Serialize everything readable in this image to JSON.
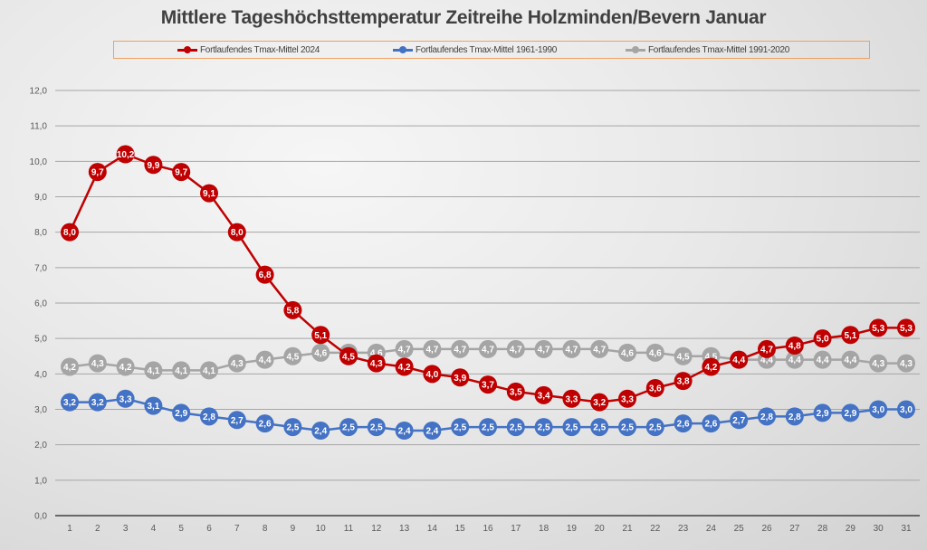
{
  "chart_data": {
    "type": "line",
    "title": "Mittlere Tageshöchsttemperatur Zeitreihe Holzminden/Bevern Januar",
    "xlabel": "",
    "ylabel": "",
    "x": [
      1,
      2,
      3,
      4,
      5,
      6,
      7,
      8,
      9,
      10,
      11,
      12,
      13,
      14,
      15,
      16,
      17,
      18,
      19,
      20,
      21,
      22,
      23,
      24,
      25,
      26,
      27,
      28,
      29,
      30,
      31
    ],
    "ylim": [
      0,
      12
    ],
    "y_ticks": [
      "0,0",
      "1,0",
      "2,0",
      "3,0",
      "4,0",
      "5,0",
      "6,0",
      "7,0",
      "8,0",
      "9,0",
      "10,0",
      "11,0",
      "12,0"
    ],
    "grid": true,
    "legend_position": "top",
    "series": [
      {
        "name": "Fortlaufendes Tmax-Mittel 1961-1990",
        "color": "#4472c4",
        "values": [
          3.2,
          3.2,
          3.3,
          3.1,
          2.9,
          2.8,
          2.7,
          2.6,
          2.5,
          2.4,
          2.5,
          2.5,
          2.4,
          2.4,
          2.5,
          2.5,
          2.5,
          2.5,
          2.5,
          2.5,
          2.5,
          2.5,
          2.6,
          2.6,
          2.7,
          2.8,
          2.8,
          2.9,
          2.9,
          3.0,
          3.0
        ]
      },
      {
        "name": "Fortlaufendes Tmax-Mittel 1991-2020",
        "color": "#a5a5a5",
        "values": [
          4.2,
          4.3,
          4.2,
          4.1,
          4.1,
          4.1,
          4.3,
          4.4,
          4.5,
          4.6,
          4.6,
          4.6,
          4.7,
          4.7,
          4.7,
          4.7,
          4.7,
          4.7,
          4.7,
          4.7,
          4.6,
          4.6,
          4.5,
          4.5,
          4.4,
          4.4,
          4.4,
          4.4,
          4.4,
          4.3,
          4.3
        ]
      },
      {
        "name": "Fortlaufendes Tmax-Mittel 2024",
        "color": "#c00000",
        "values": [
          8.0,
          9.7,
          10.2,
          9.9,
          9.7,
          9.1,
          8.0,
          6.8,
          5.8,
          5.1,
          4.5,
          4.3,
          4.2,
          4.0,
          3.9,
          3.7,
          3.5,
          3.4,
          3.3,
          3.2,
          3.3,
          3.6,
          3.8,
          4.2,
          4.4,
          4.7,
          4.8,
          5.0,
          5.1,
          5.3,
          5.3
        ]
      }
    ],
    "legend_order": [
      2,
      0,
      1
    ],
    "decimal_separator": ","
  }
}
